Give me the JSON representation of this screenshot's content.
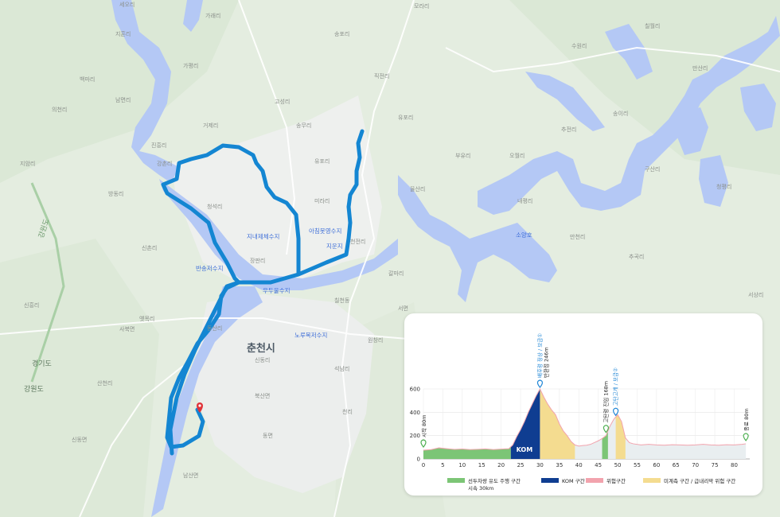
{
  "map": {
    "city_label": "춘천시",
    "province_labels": [
      "경기도",
      "강원도"
    ],
    "road_labels": [
      "강원도",
      "5"
    ],
    "water_labels": [
      "소양호",
      "지내제체수지",
      "아침못영수지",
      "지운지",
      "반송저수지",
      "우두울수지",
      "노루목저수지"
    ],
    "place_labels": [
      "세오리",
      "가래리",
      "지혼리",
      "송포리",
      "수원리",
      "백마리",
      "의천리",
      "거제리",
      "송무리",
      "직전리",
      "만산리",
      "가평리",
      "남면리",
      "유포리",
      "모라리",
      "칠월리",
      "송이리",
      "고성리",
      "진흥리",
      "청석리",
      "부유리",
      "구산리",
      "율산리",
      "내평리",
      "청평리",
      "천전리",
      "추전리",
      "유포리",
      "미라리",
      "장판리",
      "갈마리",
      "석남리",
      "칠천동",
      "만천리",
      "오월리",
      "원창리",
      "지암리",
      "방동리",
      "신촌리",
      "추곡리",
      "신흥리",
      "옛목리",
      "서상리",
      "동산리",
      "강촌리",
      "신동리",
      "천리",
      "사북면",
      "산천리",
      "서면",
      "북산면",
      "동면",
      "신동면",
      "남산면"
    ],
    "route_color": "#1486d2",
    "water_color": "#b4c8f5",
    "marker_color": "#e0343a"
  },
  "profile": {
    "legend": [
      {
        "label": "선두차량 유도 주행 구간",
        "sub": "시속 30km",
        "color": "#7cc576"
      },
      {
        "label": "KOM 구간",
        "color": "#0f3d91"
      },
      {
        "label": "위험구간",
        "color": "#f2a3ad"
      },
      {
        "label": "미계측 구간 / 급내리막 위험 구간",
        "color": "#f4dc90"
      }
    ],
    "kom_label": "KOM",
    "markers": {
      "start": "시작 80m",
      "peak1_title": "배후령 정상 / 보급①",
      "peak1_sub": "반환점 246m",
      "peak2_title": "고탄고개 / 보급②",
      "peak2_sub": "고탄령 진입 168m",
      "end": "종료 80m"
    }
  },
  "chart_data": {
    "type": "area",
    "title": "",
    "xlabel": "",
    "ylabel": "",
    "xlim": [
      0,
      84
    ],
    "ylim": [
      0,
      600
    ],
    "x_ticks": [
      0,
      5,
      10,
      15,
      20,
      25,
      30,
      35,
      40,
      45,
      50,
      55,
      60,
      65,
      70,
      75,
      80
    ],
    "y_ticks": [
      0,
      200,
      400,
      600
    ],
    "series": [
      {
        "x": [
          0,
          2,
          4,
          6,
          8,
          10,
          12,
          14,
          16,
          18,
          20,
          22,
          23,
          24,
          25,
          26,
          27,
          28,
          29,
          30,
          31,
          32,
          33,
          34,
          35,
          36,
          37,
          38,
          39,
          40,
          41,
          42,
          43,
          44,
          45,
          46,
          47,
          48,
          49,
          50,
          51,
          52,
          53,
          54,
          56,
          58,
          60,
          62,
          64,
          66,
          68,
          70,
          72,
          74,
          76,
          78,
          80,
          82,
          83
        ],
        "y": [
          75,
          80,
          95,
          88,
          82,
          85,
          80,
          83,
          86,
          80,
          84,
          88,
          120,
          190,
          250,
          320,
          400,
          470,
          540,
          600,
          530,
          470,
          420,
          380,
          300,
          240,
          200,
          150,
          120,
          110,
          115,
          118,
          125,
          140,
          155,
          175,
          200,
          280,
          340,
          380,
          320,
          180,
          140,
          130,
          120,
          125,
          120,
          118,
          122,
          120,
          118,
          120,
          125,
          120,
          118,
          122,
          120,
          125,
          130
        ]
      }
    ],
    "segments": [
      {
        "name": "선두차량 유도 주행 구간",
        "from": 0,
        "to": 22.5
      },
      {
        "name": "KOM 구간",
        "from": 22.5,
        "to": 30
      },
      {
        "name": "미계측 구간 / 급내리막 위험 구간",
        "from": 30,
        "to": 39
      },
      {
        "name": "선두차량 유도 주행 구간",
        "from": 46,
        "to": 47.5
      },
      {
        "name": "미계측 구간 / 급내리막 위험 구간",
        "from": 49.5,
        "to": 52
      }
    ]
  }
}
